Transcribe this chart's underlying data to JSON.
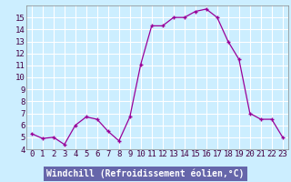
{
  "x": [
    0,
    1,
    2,
    3,
    4,
    5,
    6,
    7,
    8,
    9,
    10,
    11,
    12,
    13,
    14,
    15,
    16,
    17,
    18,
    19,
    20,
    21,
    22,
    23
  ],
  "y": [
    5.3,
    4.9,
    5.0,
    4.4,
    6.0,
    6.7,
    6.5,
    5.5,
    4.7,
    6.7,
    11.1,
    14.3,
    14.3,
    15.0,
    15.0,
    15.5,
    15.7,
    15.0,
    13.0,
    11.5,
    7.0,
    6.5,
    6.5,
    5.0
  ],
  "line_color": "#990099",
  "marker": "+",
  "marker_size": 3,
  "bg_color": "#cceeff",
  "grid_color": "#ffffff",
  "xlabel": "Windchill (Refroidissement éolien,°C)",
  "xlabel_fontsize": 7,
  "tick_fontsize": 6.5,
  "ylim": [
    4,
    16
  ],
  "xlim": [
    -0.5,
    23.5
  ],
  "yticks": [
    4,
    5,
    6,
    7,
    8,
    9,
    10,
    11,
    12,
    13,
    14,
    15
  ],
  "xticks": [
    0,
    1,
    2,
    3,
    4,
    5,
    6,
    7,
    8,
    9,
    10,
    11,
    12,
    13,
    14,
    15,
    16,
    17,
    18,
    19,
    20,
    21,
    22,
    23
  ],
  "xlabel_bg": "#7777aa",
  "spine_color": "#888888"
}
